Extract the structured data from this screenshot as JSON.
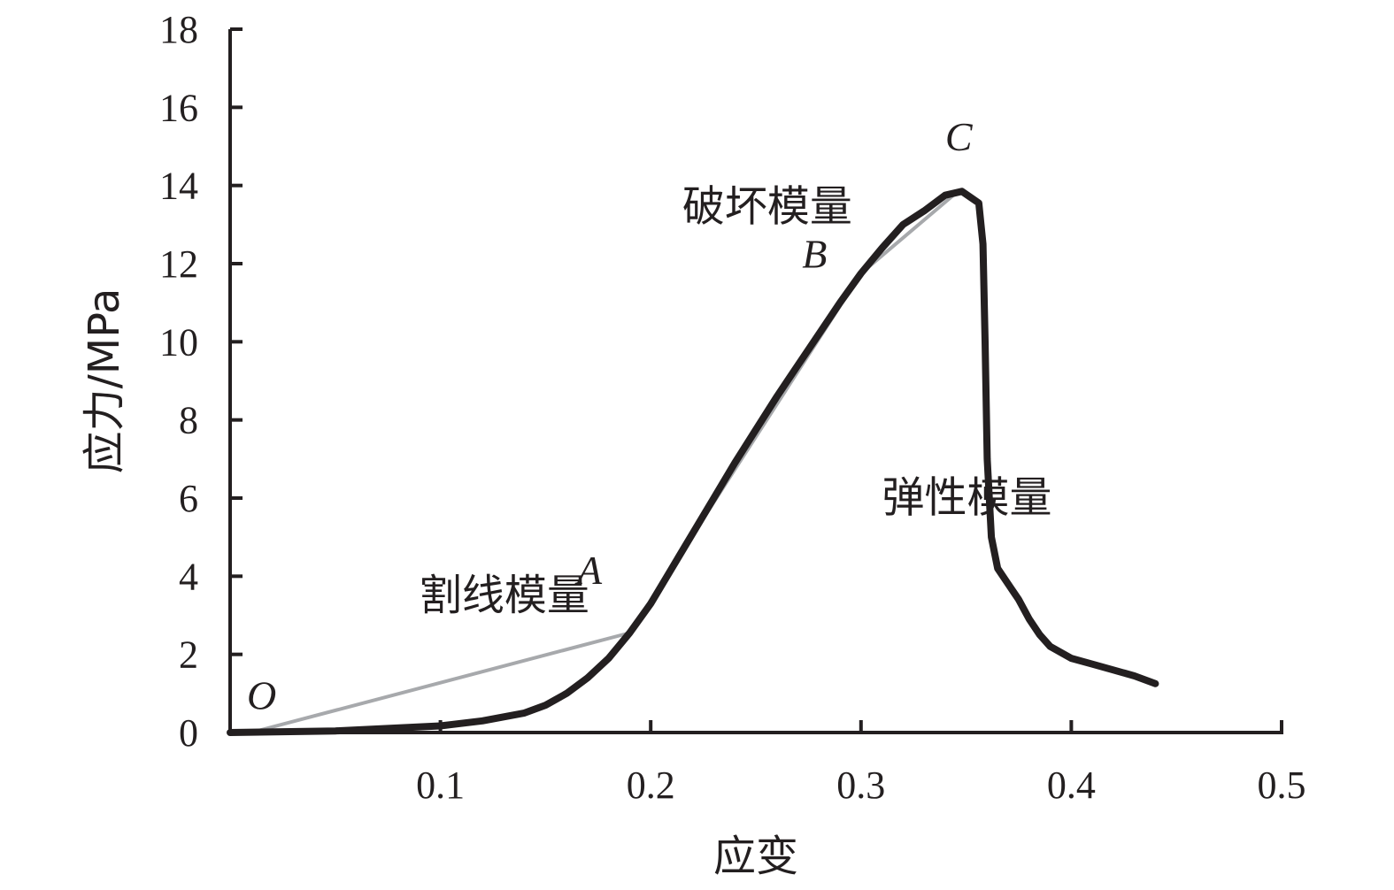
{
  "chart_data": {
    "type": "line",
    "xlabel": "应变",
    "ylabel": "应力/MPa",
    "xlim": [
      0,
      0.5
    ],
    "ylim": [
      0,
      18
    ],
    "x_ticks": [
      0.1,
      0.2,
      0.3,
      0.4,
      0.5
    ],
    "x_tick_labels": [
      "0.1",
      "0.2",
      "0.3",
      "0.4",
      "0.5"
    ],
    "y_ticks": [
      0,
      2,
      4,
      6,
      8,
      10,
      12,
      14,
      16,
      18
    ],
    "y_tick_labels": [
      "0",
      "2",
      "4",
      "6",
      "8",
      "10",
      "12",
      "14",
      "16",
      "18"
    ],
    "grid": false,
    "series": [
      {
        "color": "#231f20",
        "points": [
          [
            0.0,
            0.0
          ],
          [
            0.05,
            0.04
          ],
          [
            0.1,
            0.17
          ],
          [
            0.12,
            0.3
          ],
          [
            0.14,
            0.5
          ],
          [
            0.15,
            0.7
          ],
          [
            0.16,
            1.0
          ],
          [
            0.17,
            1.4
          ],
          [
            0.18,
            1.9
          ],
          [
            0.19,
            2.55
          ],
          [
            0.2,
            3.3
          ],
          [
            0.21,
            4.2
          ],
          [
            0.22,
            5.1
          ],
          [
            0.23,
            6.0
          ],
          [
            0.24,
            6.9
          ],
          [
            0.25,
            7.75
          ],
          [
            0.26,
            8.6
          ],
          [
            0.27,
            9.4
          ],
          [
            0.28,
            10.2
          ],
          [
            0.29,
            11.0
          ],
          [
            0.3,
            11.75
          ],
          [
            0.31,
            12.4
          ],
          [
            0.32,
            13.0
          ],
          [
            0.33,
            13.35
          ],
          [
            0.34,
            13.75
          ],
          [
            0.348,
            13.85
          ],
          [
            0.352,
            13.7
          ],
          [
            0.356,
            13.55
          ],
          [
            0.358,
            12.5
          ],
          [
            0.359,
            10.0
          ],
          [
            0.36,
            7.0
          ],
          [
            0.362,
            5.0
          ],
          [
            0.365,
            4.2
          ],
          [
            0.37,
            3.8
          ],
          [
            0.375,
            3.4
          ],
          [
            0.38,
            2.9
          ],
          [
            0.385,
            2.5
          ],
          [
            0.39,
            2.2
          ],
          [
            0.4,
            1.9
          ],
          [
            0.41,
            1.75
          ],
          [
            0.42,
            1.6
          ],
          [
            0.43,
            1.45
          ],
          [
            0.44,
            1.25
          ]
        ]
      }
    ],
    "reference_lines": [
      {
        "label": "割线模量",
        "color": "#a7a9ac",
        "points": [
          [
            0.01,
            0.0
          ],
          [
            0.19,
            2.55
          ]
        ]
      },
      {
        "label": "弹性模量",
        "color": "#a7a9ac",
        "points": [
          [
            0.19,
            2.55
          ],
          [
            0.3,
            11.75
          ]
        ]
      },
      {
        "label": "破坏模量",
        "color": "#a7a9ac",
        "points": [
          [
            0.3,
            11.75
          ],
          [
            0.345,
            13.8
          ]
        ]
      }
    ],
    "annotations": [
      {
        "text": "割线模量",
        "x": 0.09,
        "y": 3.15
      },
      {
        "text": "弹性模量",
        "x": 0.31,
        "y": 5.65
      },
      {
        "text": "破坏模量",
        "x": 0.215,
        "y": 13.1
      }
    ],
    "point_labels": [
      {
        "text": "O",
        "x": 0.008,
        "y": 0.6
      },
      {
        "text": "A",
        "x": 0.165,
        "y": 3.8
      },
      {
        "text": "B",
        "x": 0.272,
        "y": 11.9
      },
      {
        "text": "C",
        "x": 0.34,
        "y": 14.9
      }
    ]
  }
}
